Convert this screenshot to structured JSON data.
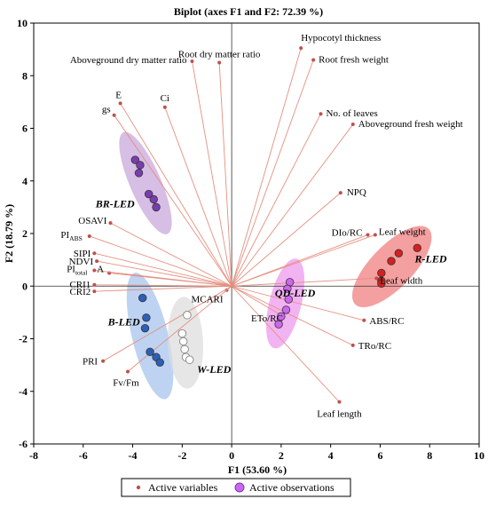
{
  "chart_data": {
    "type": "scatter",
    "title": "Biplot (axes F1 and F2: 72.39 %)",
    "xlabel": "F1 (53.60 %)",
    "ylabel": "F2 (18.79 %)",
    "xlim": [
      -8,
      10
    ],
    "ylim": [
      -6,
      10
    ],
    "x_ticks": [
      -8,
      -6,
      -4,
      -2,
      0,
      2,
      4,
      6,
      8,
      10
    ],
    "y_ticks": [
      -6,
      -4,
      -2,
      0,
      2,
      4,
      6,
      8,
      10
    ],
    "grid": false,
    "legend_position": "bottom",
    "legend": [
      {
        "label": "Active variables",
        "marker": "small-dot",
        "color": "#c0504d"
      },
      {
        "label": "Active observations",
        "marker": "circle",
        "color": "#cc66ee"
      }
    ],
    "variables": [
      {
        "name": "Hypocotyl thickness",
        "x": 2.8,
        "y": 9.05
      },
      {
        "name": "Root fresh weight",
        "x": 3.3,
        "y": 8.6
      },
      {
        "name": "Root dry matter ratio",
        "x": -0.5,
        "y": 8.5
      },
      {
        "name": "Aboveground dry matter ratio",
        "x": -1.6,
        "y": 8.55
      },
      {
        "name": "No. of leaves",
        "x": 3.6,
        "y": 6.55
      },
      {
        "name": "Aboveground fresh weight",
        "x": 4.9,
        "y": 6.15
      },
      {
        "name": "E",
        "x": -4.5,
        "y": 6.95
      },
      {
        "name": "Ci",
        "x": -2.7,
        "y": 6.8
      },
      {
        "name": "gs",
        "x": -4.75,
        "y": 6.5
      },
      {
        "name": "NPQ",
        "x": 4.4,
        "y": 3.55
      },
      {
        "name": "OSAVI",
        "x": -4.9,
        "y": 2.4
      },
      {
        "name": "PI",
        "sub": "ABS",
        "x": -5.75,
        "y": 1.9
      },
      {
        "name": "DIo/RC",
        "x": 5.5,
        "y": 1.95
      },
      {
        "name": "Leaf weight",
        "x": 5.8,
        "y": 1.95
      },
      {
        "name": "SIPI",
        "x": -5.55,
        "y": 1.25
      },
      {
        "name": "NDVI",
        "x": -5.45,
        "y": 0.95
      },
      {
        "name": "A",
        "x": -4.95,
        "y": 0.5
      },
      {
        "name": "PI",
        "sub": "total",
        "x": -5.55,
        "y": 0.6
      },
      {
        "name": "CRI1",
        "x": -5.55,
        "y": 0.05
      },
      {
        "name": "CRI2",
        "x": -5.55,
        "y": -0.2
      },
      {
        "name": "Leaf width",
        "x": 5.85,
        "y": 0.3
      },
      {
        "name": "MCARI",
        "x": -0.2,
        "y": -0.15
      },
      {
        "name": "ETo/RC",
        "x": 2.0,
        "y": -1.1
      },
      {
        "name": "ABS/RC",
        "x": 5.35,
        "y": -1.3
      },
      {
        "name": "TRo/RC",
        "x": 4.9,
        "y": -2.25
      },
      {
        "name": "PRI",
        "x": -5.2,
        "y": -2.85
      },
      {
        "name": "Fv/Fm",
        "x": -4.2,
        "y": -3.25
      },
      {
        "name": "Leaf length",
        "x": 4.35,
        "y": -4.4
      }
    ],
    "observation_groups": [
      {
        "name": "BR-LED",
        "color": "#7a3db0",
        "ellipse_color": "#c8a8dc",
        "points": [
          [
            -3.9,
            4.8
          ],
          [
            -3.7,
            4.6
          ],
          [
            -3.75,
            4.3
          ],
          [
            -3.35,
            3.5
          ],
          [
            -3.15,
            3.3
          ],
          [
            -3.05,
            3.0
          ]
        ]
      },
      {
        "name": "B-LED",
        "color": "#2d5fb8",
        "ellipse_color": "#a8c4ec",
        "points": [
          [
            -3.6,
            -0.45
          ],
          [
            -3.45,
            -1.2
          ],
          [
            -3.5,
            -1.6
          ],
          [
            -3.3,
            -2.5
          ],
          [
            -3.05,
            -2.7
          ],
          [
            -2.9,
            -2.9
          ]
        ]
      },
      {
        "name": "W-LED",
        "color": "#ffffff",
        "ellipse_color": "#dddddd",
        "points": [
          [
            -1.8,
            -1.1
          ],
          [
            -2.0,
            -1.8
          ],
          [
            -1.95,
            -2.1
          ],
          [
            -1.9,
            -2.4
          ],
          [
            -1.85,
            -2.7
          ],
          [
            -1.7,
            -2.8
          ]
        ]
      },
      {
        "name": "QD-LED",
        "color": "#cc66ee",
        "ellipse_color": "#ee99ee",
        "points": [
          [
            2.35,
            0.15
          ],
          [
            2.25,
            -0.1
          ],
          [
            2.3,
            -0.5
          ],
          [
            2.2,
            -0.9
          ],
          [
            2.0,
            -1.15
          ],
          [
            1.9,
            -1.45
          ]
        ]
      },
      {
        "name": "R-LED",
        "color": "#d42020",
        "ellipse_color": "#f08080",
        "points": [
          [
            7.5,
            1.45
          ],
          [
            6.75,
            1.25
          ],
          [
            6.45,
            0.95
          ],
          [
            6.05,
            0.5
          ],
          [
            6.05,
            0.2
          ],
          [
            6.05,
            0.1
          ]
        ]
      }
    ]
  }
}
